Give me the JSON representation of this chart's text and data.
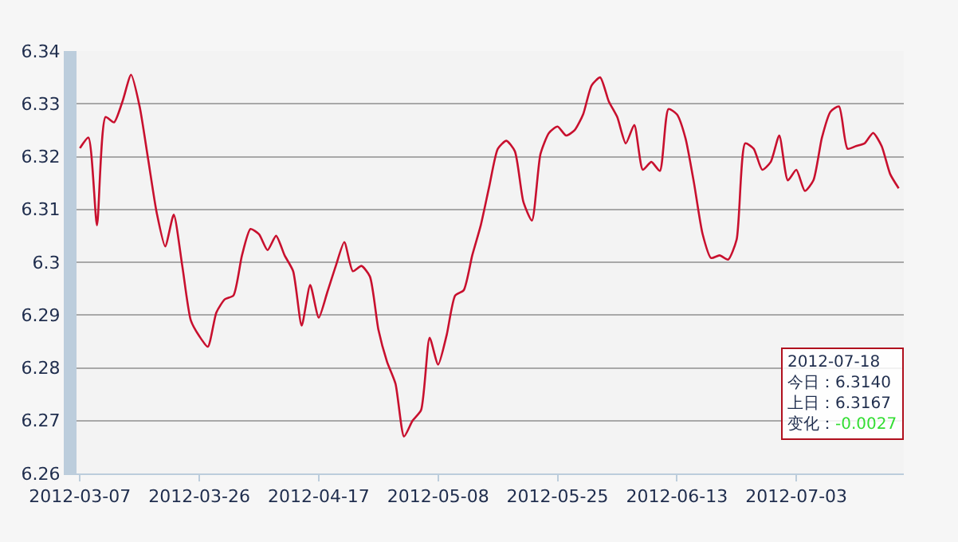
{
  "chart_data": {
    "type": "line",
    "categories": [
      "2012-03-07",
      null,
      null,
      null,
      null,
      null,
      null,
      null,
      null,
      null,
      null,
      null,
      null,
      null,
      "2012-03-26",
      null,
      null,
      null,
      null,
      null,
      null,
      null,
      null,
      null,
      null,
      null,
      null,
      null,
      "2012-04-17",
      null,
      null,
      null,
      null,
      null,
      null,
      null,
      null,
      null,
      null,
      null,
      null,
      null,
      "2012-05-08",
      null,
      null,
      null,
      null,
      null,
      null,
      null,
      null,
      null,
      null,
      null,
      null,
      null,
      "2012-05-25",
      null,
      null,
      null,
      null,
      null,
      null,
      null,
      null,
      null,
      null,
      null,
      null,
      null,
      "2012-06-13",
      null,
      null,
      null,
      null,
      null,
      null,
      null,
      null,
      null,
      null,
      null,
      null,
      null,
      "2012-07-03",
      null,
      null,
      null,
      null,
      null,
      null,
      null,
      null,
      null,
      null,
      null,
      null
    ],
    "series": [
      {
        "color": "#c8102e",
        "values": [
          6.3216,
          6.3236,
          6.307,
          6.3275,
          6.3265,
          6.3305,
          6.3355,
          6.3295,
          6.3195,
          6.3094,
          6.303,
          6.309,
          6.2993,
          6.289,
          6.286,
          6.284,
          6.2905,
          6.293,
          6.2937,
          6.3013,
          6.3063,
          6.3053,
          6.3023,
          6.305,
          6.3013,
          6.2983,
          6.288,
          6.2957,
          6.2895,
          6.2943,
          6.2993,
          6.3038,
          6.2983,
          6.2993,
          6.2973,
          6.2872,
          6.2812,
          6.277,
          6.267,
          6.27,
          6.272,
          6.2857,
          6.2806,
          6.2862,
          6.2937,
          6.2947,
          6.3013,
          6.307,
          6.3144,
          6.3215,
          6.323,
          6.321,
          6.3114,
          6.3079,
          6.3205,
          6.3245,
          6.3257,
          6.324,
          6.325,
          6.328,
          6.3335,
          6.335,
          6.3305,
          6.3275,
          6.3225,
          6.326,
          6.3175,
          6.319,
          6.3173,
          6.329,
          6.328,
          6.3235,
          6.315,
          6.3054,
          6.3008,
          6.3013,
          6.3005,
          6.3043,
          6.3225,
          6.3215,
          6.3175,
          6.319,
          6.324,
          6.3155,
          6.3175,
          6.3135,
          6.3155,
          6.3236,
          6.3285,
          6.3295,
          6.3215,
          6.322,
          6.3225,
          6.3245,
          6.322,
          6.3167,
          6.314
        ]
      }
    ],
    "ylim": [
      6.26,
      6.34
    ],
    "yticks": [
      6.26,
      6.27,
      6.28,
      6.29,
      {
        "value": 6.3,
        "label": "6.3"
      },
      6.31,
      6.32,
      6.33,
      6.34
    ],
    "grid": "y",
    "annotations": [
      "2012-07-18",
      "今日：6.3140",
      "上日：6.3167",
      "变化：-0.0027"
    ]
  }
}
